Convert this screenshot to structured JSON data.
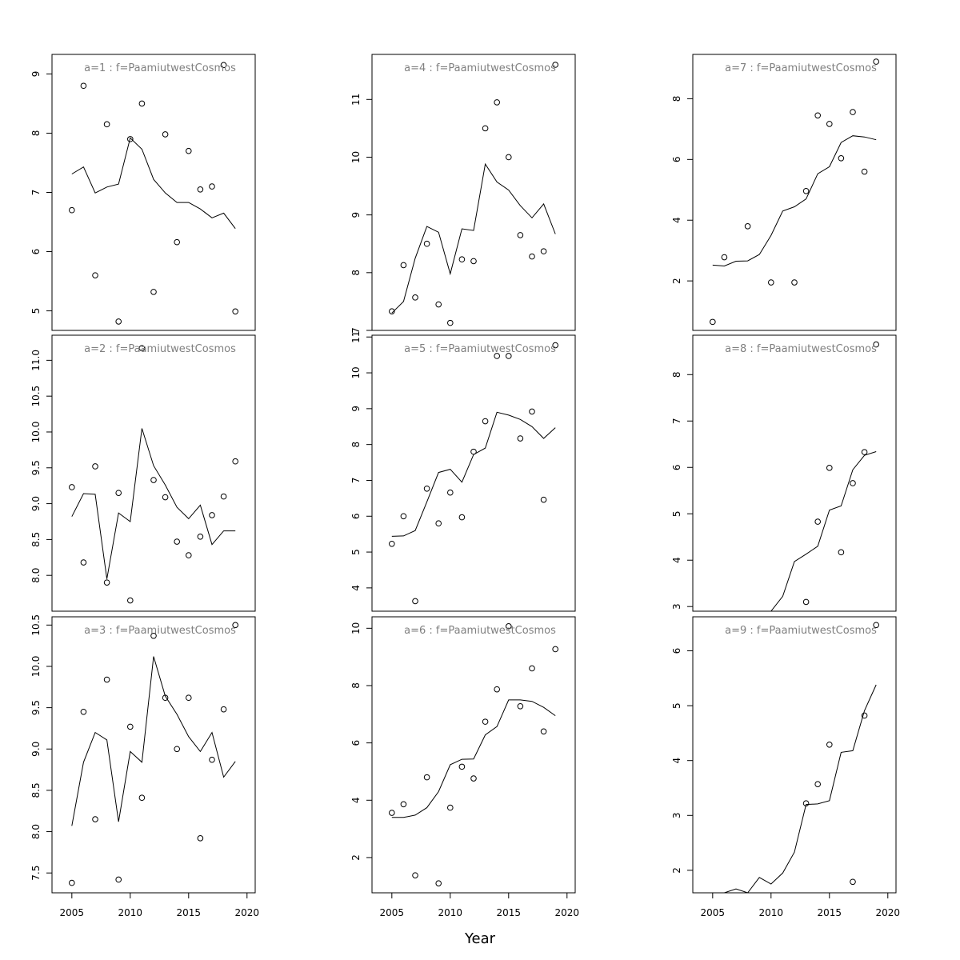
{
  "figure": {
    "xlabel": "Year"
  },
  "chart_data": [
    {
      "type": "scatter",
      "title": "a=1 : f=PaamiutwestCosmos",
      "xlim": [
        2003.3,
        2020.7
      ],
      "ylim": [
        4.67,
        9.33
      ],
      "xticks": [
        2005,
        2010,
        2015,
        2020
      ],
      "yticks": [
        "5",
        "6",
        "7",
        "8",
        "9"
      ],
      "points": [
        [
          2005,
          6.7
        ],
        [
          2006,
          8.8
        ],
        [
          2007,
          5.6
        ],
        [
          2008,
          8.15
        ],
        [
          2009,
          4.82
        ],
        [
          2010,
          7.9
        ],
        [
          2011,
          8.5
        ],
        [
          2012,
          5.32
        ],
        [
          2013,
          7.98
        ],
        [
          2014,
          6.16
        ],
        [
          2015,
          7.7
        ],
        [
          2016,
          7.05
        ],
        [
          2017,
          7.1
        ],
        [
          2018,
          9.15
        ],
        [
          2019,
          4.99
        ]
      ],
      "line": [
        [
          2005,
          7.31
        ],
        [
          2006,
          7.43
        ],
        [
          2007,
          6.99
        ],
        [
          2008,
          7.09
        ],
        [
          2009,
          7.14
        ],
        [
          2010,
          7.92
        ],
        [
          2011,
          7.73
        ],
        [
          2012,
          7.22
        ],
        [
          2013,
          6.99
        ],
        [
          2014,
          6.83
        ],
        [
          2015,
          6.83
        ],
        [
          2016,
          6.72
        ],
        [
          2017,
          6.57
        ],
        [
          2018,
          6.65
        ],
        [
          2019,
          6.39
        ]
      ]
    },
    {
      "type": "scatter",
      "title": "a=2 : f=PaamiutwestCosmos",
      "xlim": [
        2003.3,
        2020.7
      ],
      "ylim": [
        7.5,
        11.35
      ],
      "xticks": [
        2005,
        2010,
        2015,
        2020
      ],
      "yticks": [
        "8.0",
        "8.5",
        "9.0",
        "9.5",
        "10.0",
        "10.5",
        "11.0"
      ],
      "points": [
        [
          2005,
          9.23
        ],
        [
          2006,
          8.18
        ],
        [
          2007,
          9.52
        ],
        [
          2008,
          7.9
        ],
        [
          2009,
          9.15
        ],
        [
          2010,
          7.65
        ],
        [
          2011,
          11.17
        ],
        [
          2012,
          9.33
        ],
        [
          2013,
          9.09
        ],
        [
          2014,
          8.47
        ],
        [
          2015,
          8.28
        ],
        [
          2016,
          8.54
        ],
        [
          2017,
          8.84
        ],
        [
          2018,
          9.1
        ],
        [
          2019,
          9.59
        ]
      ],
      "line": [
        [
          2005,
          8.82
        ],
        [
          2006,
          9.14
        ],
        [
          2007,
          9.13
        ],
        [
          2008,
          7.95
        ],
        [
          2009,
          8.87
        ],
        [
          2010,
          8.75
        ],
        [
          2011,
          10.05
        ],
        [
          2012,
          9.53
        ],
        [
          2013,
          9.26
        ],
        [
          2014,
          8.95
        ],
        [
          2015,
          8.79
        ],
        [
          2016,
          8.98
        ],
        [
          2017,
          8.43
        ],
        [
          2018,
          8.62
        ],
        [
          2019,
          8.62
        ]
      ]
    },
    {
      "type": "scatter",
      "title": "a=3 : f=PaamiutwestCosmos",
      "xlim": [
        2003.3,
        2020.7
      ],
      "ylim": [
        7.26,
        10.6
      ],
      "xticks": [
        2005,
        2010,
        2015,
        2020
      ],
      "yticks": [
        "7.5",
        "8.0",
        "8.5",
        "9.0",
        "9.5",
        "10.0",
        "10.5"
      ],
      "points": [
        [
          2005,
          7.38
        ],
        [
          2006,
          9.45
        ],
        [
          2007,
          8.15
        ],
        [
          2008,
          9.84
        ],
        [
          2009,
          7.42
        ],
        [
          2010,
          9.27
        ],
        [
          2011,
          8.41
        ],
        [
          2012,
          10.37
        ],
        [
          2013,
          9.62
        ],
        [
          2014,
          9.0
        ],
        [
          2015,
          9.62
        ],
        [
          2016,
          7.92
        ],
        [
          2017,
          8.87
        ],
        [
          2018,
          9.48
        ],
        [
          2019,
          10.5
        ]
      ],
      "line": [
        [
          2005,
          8.07
        ],
        [
          2006,
          8.84
        ],
        [
          2007,
          9.2
        ],
        [
          2008,
          9.11
        ],
        [
          2009,
          8.12
        ],
        [
          2010,
          8.97
        ],
        [
          2011,
          8.84
        ],
        [
          2012,
          10.12
        ],
        [
          2013,
          9.64
        ],
        [
          2014,
          9.42
        ],
        [
          2015,
          9.15
        ],
        [
          2016,
          8.97
        ],
        [
          2017,
          9.2
        ],
        [
          2018,
          8.66
        ],
        [
          2019,
          8.85
        ]
      ]
    },
    {
      "type": "scatter",
      "title": "a=4 : f=PaamiutwestCosmos",
      "xlim": [
        2003.3,
        2020.7
      ],
      "ylim": [
        7.0,
        11.78
      ],
      "xticks": [
        2005,
        2010,
        2015,
        2020
      ],
      "yticks": [
        "7",
        "8",
        "9",
        "10",
        "11"
      ],
      "points": [
        [
          2005,
          7.33
        ],
        [
          2006,
          8.13
        ],
        [
          2007,
          7.57
        ],
        [
          2008,
          8.5
        ],
        [
          2009,
          7.45
        ],
        [
          2010,
          7.13
        ],
        [
          2011,
          8.23
        ],
        [
          2012,
          8.2
        ],
        [
          2013,
          10.5
        ],
        [
          2014,
          10.95
        ],
        [
          2015,
          10.0
        ],
        [
          2016,
          8.65
        ],
        [
          2017,
          8.28
        ],
        [
          2018,
          8.37
        ],
        [
          2019,
          11.6
        ]
      ],
      "line": [
        [
          2005,
          7.3
        ],
        [
          2006,
          7.5
        ],
        [
          2007,
          8.25
        ],
        [
          2008,
          8.8
        ],
        [
          2009,
          8.7
        ],
        [
          2010,
          7.98
        ],
        [
          2011,
          8.76
        ],
        [
          2012,
          8.73
        ],
        [
          2013,
          9.88
        ],
        [
          2014,
          9.57
        ],
        [
          2015,
          9.43
        ],
        [
          2016,
          9.16
        ],
        [
          2017,
          8.95
        ],
        [
          2018,
          9.19
        ],
        [
          2019,
          8.67
        ]
      ]
    },
    {
      "type": "scatter",
      "title": "a=5 : f=PaamiutwestCosmos",
      "xlim": [
        2003.3,
        2020.7
      ],
      "ylim": [
        3.35,
        11.05
      ],
      "xticks": [
        2005,
        2010,
        2015,
        2020
      ],
      "yticks": [
        "4",
        "5",
        "6",
        "7",
        "8",
        "9",
        "10",
        "11"
      ],
      "points": [
        [
          2005,
          5.23
        ],
        [
          2006,
          6.0
        ],
        [
          2007,
          3.63
        ],
        [
          2008,
          6.77
        ],
        [
          2009,
          5.8
        ],
        [
          2010,
          6.66
        ],
        [
          2011,
          5.97
        ],
        [
          2012,
          7.8
        ],
        [
          2013,
          8.65
        ],
        [
          2014,
          10.47
        ],
        [
          2015,
          10.47
        ],
        [
          2016,
          8.17
        ],
        [
          2017,
          8.92
        ],
        [
          2018,
          6.46
        ],
        [
          2019,
          10.77
        ]
      ],
      "line": [
        [
          2005,
          5.44
        ],
        [
          2006,
          5.45
        ],
        [
          2007,
          5.6
        ],
        [
          2008,
          6.4
        ],
        [
          2009,
          7.22
        ],
        [
          2010,
          7.31
        ],
        [
          2011,
          6.95
        ],
        [
          2012,
          7.72
        ],
        [
          2013,
          7.9
        ],
        [
          2014,
          8.9
        ],
        [
          2015,
          8.82
        ],
        [
          2016,
          8.7
        ],
        [
          2017,
          8.5
        ],
        [
          2018,
          8.17
        ],
        [
          2019,
          8.47
        ]
      ]
    },
    {
      "type": "scatter",
      "title": "a=6 : f=PaamiutwestCosmos",
      "xlim": [
        2003.3,
        2020.7
      ],
      "ylim": [
        0.77,
        10.4
      ],
      "xticks": [
        2005,
        2010,
        2015,
        2020
      ],
      "yticks": [
        "2",
        "4",
        "6",
        "8",
        "10"
      ],
      "points": [
        [
          2005,
          3.56
        ],
        [
          2006,
          3.86
        ],
        [
          2007,
          1.38
        ],
        [
          2008,
          4.8
        ],
        [
          2009,
          1.1
        ],
        [
          2010,
          3.74
        ],
        [
          2011,
          5.17
        ],
        [
          2012,
          4.76
        ],
        [
          2013,
          6.74
        ],
        [
          2014,
          7.87
        ],
        [
          2015,
          10.07
        ],
        [
          2016,
          7.28
        ],
        [
          2017,
          8.6
        ],
        [
          2018,
          6.4
        ],
        [
          2019,
          9.27
        ]
      ],
      "line": [
        [
          2005,
          3.4
        ],
        [
          2006,
          3.4
        ],
        [
          2007,
          3.48
        ],
        [
          2008,
          3.74
        ],
        [
          2009,
          4.3
        ],
        [
          2010,
          5.24
        ],
        [
          2011,
          5.43
        ],
        [
          2012,
          5.44
        ],
        [
          2013,
          6.28
        ],
        [
          2014,
          6.57
        ],
        [
          2015,
          7.5
        ],
        [
          2016,
          7.5
        ],
        [
          2017,
          7.45
        ],
        [
          2018,
          7.24
        ],
        [
          2019,
          6.95
        ]
      ]
    },
    {
      "type": "scatter",
      "title": "a=7 : f=PaamiutwestCosmos",
      "xlim": [
        2003.3,
        2020.7
      ],
      "ylim": [
        0.37,
        9.46
      ],
      "xticks": [
        2005,
        2010,
        2015,
        2020
      ],
      "yticks": [
        "2",
        "4",
        "6",
        "8"
      ],
      "points": [
        [
          2005,
          0.65
        ],
        [
          2006,
          2.78
        ],
        [
          2008,
          3.8
        ],
        [
          2010,
          1.95
        ],
        [
          2012,
          1.95
        ],
        [
          2013,
          4.96
        ],
        [
          2014,
          7.45
        ],
        [
          2015,
          7.17
        ],
        [
          2016,
          6.04
        ],
        [
          2017,
          7.56
        ],
        [
          2018,
          5.6
        ],
        [
          2019,
          9.22
        ]
      ],
      "line": [
        [
          2005,
          2.52
        ],
        [
          2006,
          2.49
        ],
        [
          2007,
          2.65
        ],
        [
          2008,
          2.66
        ],
        [
          2009,
          2.87
        ],
        [
          2010,
          3.5
        ],
        [
          2011,
          4.3
        ],
        [
          2012,
          4.44
        ],
        [
          2013,
          4.7
        ],
        [
          2014,
          5.53
        ],
        [
          2015,
          5.76
        ],
        [
          2016,
          6.56
        ],
        [
          2017,
          6.78
        ],
        [
          2018,
          6.74
        ],
        [
          2019,
          6.65
        ]
      ]
    },
    {
      "type": "scatter",
      "title": "a=8 : f=PaamiutwestCosmos",
      "xlim": [
        2003.3,
        2020.7
      ],
      "ylim": [
        2.9,
        8.85
      ],
      "xticks": [
        2005,
        2010,
        2015,
        2020
      ],
      "yticks": [
        "3",
        "4",
        "5",
        "6",
        "7",
        "8"
      ],
      "points": [
        [
          2013,
          3.1
        ],
        [
          2014,
          4.83
        ],
        [
          2015,
          5.99
        ],
        [
          2016,
          4.17
        ],
        [
          2017,
          5.66
        ],
        [
          2018,
          6.33
        ],
        [
          2019,
          8.65
        ]
      ],
      "line": [
        [
          2010,
          2.9
        ],
        [
          2011,
          3.22
        ],
        [
          2012,
          3.97
        ],
        [
          2013,
          4.13
        ],
        [
          2014,
          4.3
        ],
        [
          2015,
          5.08
        ],
        [
          2016,
          5.17
        ],
        [
          2017,
          5.95
        ],
        [
          2018,
          6.26
        ],
        [
          2019,
          6.34
        ]
      ]
    },
    {
      "type": "scatter",
      "title": "a=9 : f=PaamiutwestCosmos",
      "xlim": [
        2003.3,
        2020.7
      ],
      "ylim": [
        1.59,
        6.62
      ],
      "xticks": [
        2005,
        2010,
        2015,
        2020
      ],
      "yticks": [
        "2",
        "3",
        "4",
        "5",
        "6"
      ],
      "points": [
        [
          2013,
          3.22
        ],
        [
          2014,
          3.57
        ],
        [
          2015,
          4.29
        ],
        [
          2017,
          1.79
        ],
        [
          2018,
          4.82
        ],
        [
          2019,
          6.47
        ]
      ],
      "line": [
        [
          2005,
          1.59
        ],
        [
          2006,
          1.59
        ],
        [
          2007,
          1.66
        ],
        [
          2008,
          1.59
        ],
        [
          2009,
          1.87
        ],
        [
          2010,
          1.75
        ],
        [
          2011,
          1.95
        ],
        [
          2012,
          2.33
        ],
        [
          2013,
          3.2
        ],
        [
          2014,
          3.21
        ],
        [
          2015,
          3.27
        ],
        [
          2016,
          4.15
        ],
        [
          2017,
          4.18
        ],
        [
          2018,
          4.91
        ],
        [
          2019,
          5.38
        ]
      ]
    }
  ]
}
